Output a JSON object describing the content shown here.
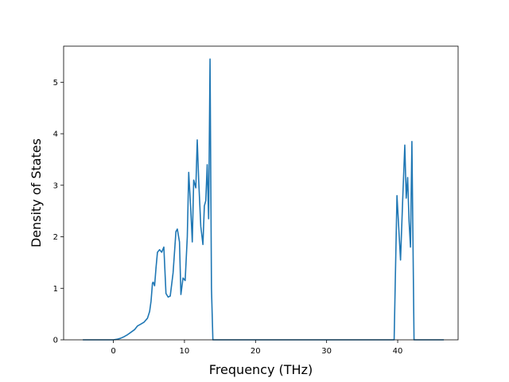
{
  "chart_data": {
    "type": "line",
    "title": "",
    "xlabel": "Frequency (THz)",
    "ylabel": "Density of States",
    "xlim": [
      -7.0,
      48.5
    ],
    "ylim": [
      0,
      5.7
    ],
    "xticks": [
      0,
      10,
      20,
      30,
      40
    ],
    "yticks": [
      0,
      1,
      2,
      3,
      4,
      5
    ],
    "grid": false,
    "line_color": "#1f77b4",
    "series": [
      {
        "x": [
          -4.3,
          0.0,
          0.5,
          1.0,
          1.5,
          2.0,
          2.5,
          3.0,
          3.4,
          3.8,
          4.3,
          4.8,
          5.1,
          5.3,
          5.5,
          5.6,
          5.8,
          6.0,
          6.2,
          6.5,
          6.8,
          7.1,
          7.4,
          7.7,
          8.0,
          8.4,
          8.8,
          9.0,
          9.3,
          9.5,
          9.8,
          10.1,
          10.4,
          10.6,
          10.9,
          11.1,
          11.3,
          11.6,
          11.8,
          12.0,
          12.3,
          12.6,
          12.8,
          13.0,
          13.2,
          13.4,
          13.6,
          13.8,
          14.0,
          14.3,
          14.6,
          39.5,
          39.9,
          40.1,
          40.4,
          40.7,
          41.0,
          41.2,
          41.4,
          41.6,
          41.8,
          42.0,
          42.3,
          46.5
        ],
        "y": [
          0.0,
          0.0,
          0.01,
          0.03,
          0.06,
          0.1,
          0.15,
          0.2,
          0.27,
          0.3,
          0.34,
          0.42,
          0.55,
          0.75,
          1.1,
          1.12,
          1.05,
          1.4,
          1.7,
          1.75,
          1.7,
          1.8,
          0.9,
          0.83,
          0.85,
          1.3,
          2.1,
          2.15,
          1.9,
          0.88,
          1.2,
          1.15,
          2.0,
          3.25,
          2.5,
          1.9,
          3.1,
          2.95,
          3.88,
          3.1,
          2.2,
          1.85,
          2.6,
          2.7,
          3.4,
          2.35,
          5.45,
          1.0,
          0.0,
          0.0,
          0.0,
          0.0,
          2.8,
          2.3,
          1.55,
          2.7,
          3.78,
          2.75,
          3.15,
          2.3,
          1.8,
          3.85,
          0.0,
          0.0
        ]
      }
    ]
  }
}
